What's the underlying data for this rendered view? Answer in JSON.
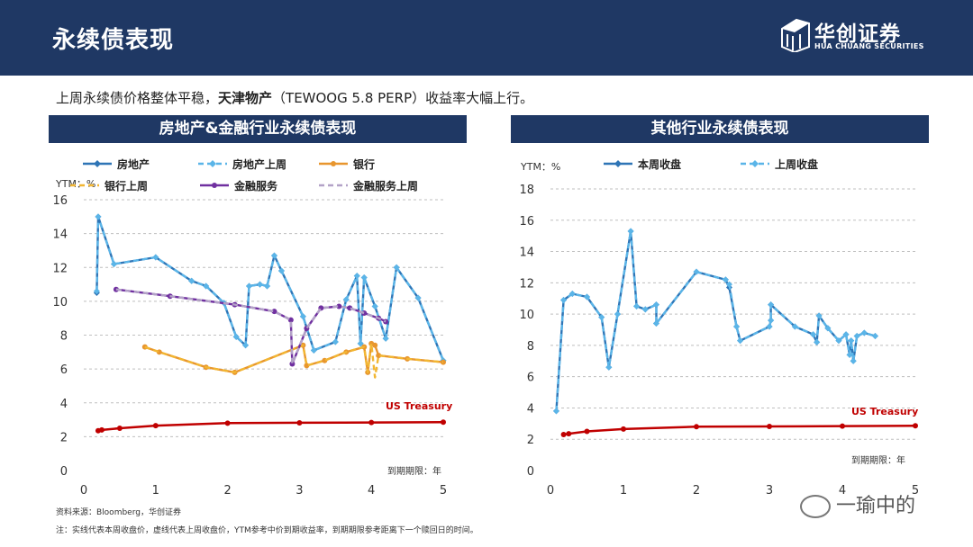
{
  "header": {
    "title": "永续债表现"
  },
  "logo": {
    "name": "华创证券",
    "sub": "HUA CHUANG SECURITIES"
  },
  "summary": {
    "part1": "上周永续债价格整体平稳，",
    "bold": "天津物产",
    "part2": "（TEWOOG 5.8 PERP）收益率大幅上行。"
  },
  "panels": {
    "left_title": "房地产&金融行业永续债表现",
    "right_title": "其他行业永续债表现"
  },
  "footer": {
    "source": "资料来源：Bloomberg，华创证券",
    "note": "注：实线代表本周收盘价，虚线代表上周收盘价，YTM参考中价到期收益率，到期期限参考距离下一个赎回日的时间。"
  },
  "watermark": "一瑜中的",
  "colors": {
    "navy": "#1f3864",
    "realestate": "#2e75b6",
    "realestate_prev": "#5bb5e8",
    "bank": "#e8962e",
    "bank_prev": "#f2b632",
    "finance": "#7030a0",
    "finance_prev": "#b3a2c7",
    "treasury": "#c00000"
  },
  "chart_data": [
    {
      "type": "line",
      "ylabel": "YTM：%",
      "xlabel": "到期期限：年",
      "xlim": [
        0,
        5
      ],
      "ylim": [
        0,
        16
      ],
      "xticks": [
        0,
        1,
        2,
        3,
        4,
        5
      ],
      "yticks": [
        0,
        2,
        4,
        6,
        8,
        10,
        12,
        14,
        16
      ],
      "legend_position": "top",
      "annotation": "US Treasury",
      "series": [
        {
          "name": "房地产",
          "style": "solid",
          "marker": "diamond",
          "color": "#2e75b6",
          "points": [
            [
              0.18,
              10.5
            ],
            [
              0.2,
              15.0
            ],
            [
              0.42,
              12.2
            ],
            [
              1.0,
              12.6
            ],
            [
              1.5,
              11.2
            ],
            [
              1.7,
              10.9
            ],
            [
              1.95,
              9.9
            ],
            [
              2.12,
              7.9
            ],
            [
              2.25,
              7.4
            ],
            [
              2.3,
              10.9
            ],
            [
              2.45,
              11.0
            ],
            [
              2.55,
              10.9
            ],
            [
              2.65,
              12.7
            ],
            [
              2.75,
              11.8
            ],
            [
              3.05,
              9.1
            ],
            [
              3.2,
              7.1
            ],
            [
              3.5,
              7.6
            ],
            [
              3.65,
              10.1
            ],
            [
              3.8,
              11.5
            ],
            [
              3.85,
              7.5
            ],
            [
              3.9,
              11.4
            ],
            [
              4.05,
              9.7
            ],
            [
              4.2,
              7.8
            ],
            [
              4.35,
              12.0
            ],
            [
              4.65,
              10.2
            ],
            [
              5.0,
              6.5
            ]
          ]
        },
        {
          "name": "房地产上周",
          "style": "dashed",
          "marker": "diamond",
          "color": "#5bb5e8",
          "points": [
            [
              0.18,
              10.6
            ],
            [
              0.2,
              15.0
            ],
            [
              0.42,
              12.2
            ],
            [
              1.0,
              12.6
            ],
            [
              1.5,
              11.2
            ],
            [
              1.7,
              10.9
            ],
            [
              1.95,
              9.9
            ],
            [
              2.12,
              7.9
            ],
            [
              2.25,
              7.4
            ],
            [
              2.3,
              10.9
            ],
            [
              2.45,
              11.0
            ],
            [
              2.55,
              10.9
            ],
            [
              2.65,
              12.7
            ],
            [
              2.75,
              11.8
            ],
            [
              3.05,
              9.1
            ],
            [
              3.2,
              7.1
            ],
            [
              3.5,
              7.6
            ],
            [
              3.65,
              10.1
            ],
            [
              3.8,
              11.5
            ],
            [
              3.85,
              7.5
            ],
            [
              3.9,
              11.4
            ],
            [
              4.05,
              9.7
            ],
            [
              4.2,
              7.8
            ],
            [
              4.35,
              12.0
            ],
            [
              4.65,
              10.2
            ],
            [
              5.0,
              6.5
            ]
          ]
        },
        {
          "name": "银行",
          "style": "solid",
          "marker": "circle",
          "color": "#e8962e",
          "points": [
            [
              0.85,
              7.3
            ],
            [
              1.05,
              7.0
            ],
            [
              1.7,
              6.1
            ],
            [
              2.1,
              5.8
            ],
            [
              3.05,
              7.4
            ],
            [
              3.1,
              6.2
            ],
            [
              3.35,
              6.5
            ],
            [
              3.65,
              7.0
            ],
            [
              3.9,
              7.3
            ],
            [
              3.95,
              5.8
            ],
            [
              4.0,
              7.5
            ],
            [
              4.05,
              7.4
            ],
            [
              4.1,
              6.8
            ],
            [
              4.5,
              6.6
            ],
            [
              5.0,
              6.4
            ]
          ]
        },
        {
          "name": "银行上周",
          "style": "dashed",
          "marker": "none",
          "color": "#f2b632",
          "points": [
            [
              0.85,
              7.3
            ],
            [
              1.05,
              7.0
            ],
            [
              1.7,
              6.1
            ],
            [
              2.1,
              5.8
            ],
            [
              3.05,
              7.4
            ],
            [
              3.1,
              6.2
            ],
            [
              3.35,
              6.5
            ],
            [
              3.65,
              7.0
            ],
            [
              3.9,
              7.3
            ],
            [
              3.95,
              5.8
            ],
            [
              4.0,
              7.5
            ],
            [
              4.05,
              5.5
            ],
            [
              4.1,
              6.8
            ],
            [
              4.5,
              6.6
            ],
            [
              5.0,
              6.4
            ]
          ]
        },
        {
          "name": "金融服务",
          "style": "solid",
          "marker": "circle",
          "color": "#7030a0",
          "points": [
            [
              0.45,
              10.7
            ],
            [
              1.2,
              10.3
            ],
            [
              2.1,
              9.8
            ],
            [
              2.65,
              9.4
            ],
            [
              2.88,
              8.9
            ],
            [
              2.9,
              6.3
            ],
            [
              3.1,
              8.4
            ],
            [
              3.3,
              9.6
            ],
            [
              3.55,
              9.7
            ],
            [
              3.7,
              9.6
            ],
            [
              3.9,
              9.3
            ],
            [
              4.1,
              9.0
            ],
            [
              4.2,
              8.8
            ]
          ]
        },
        {
          "name": "金融服务上周",
          "style": "dashed",
          "marker": "none",
          "color": "#b3a2c7",
          "points": [
            [
              0.45,
              10.7
            ],
            [
              1.2,
              10.3
            ],
            [
              2.1,
              9.8
            ],
            [
              2.65,
              9.4
            ],
            [
              2.88,
              8.9
            ],
            [
              2.9,
              6.3
            ],
            [
              3.1,
              8.4
            ],
            [
              3.3,
              9.6
            ],
            [
              3.55,
              9.7
            ],
            [
              3.7,
              9.6
            ],
            [
              3.9,
              9.3
            ],
            [
              4.1,
              9.0
            ],
            [
              4.2,
              8.8
            ]
          ]
        },
        {
          "name": "US Treasury",
          "style": "solid",
          "marker": "circle",
          "color": "#c00000",
          "in_legend": false,
          "points": [
            [
              0.2,
              2.35
            ],
            [
              0.25,
              2.4
            ],
            [
              0.5,
              2.5
            ],
            [
              1.0,
              2.65
            ],
            [
              2.0,
              2.8
            ],
            [
              3.0,
              2.82
            ],
            [
              4.0,
              2.84
            ],
            [
              5.0,
              2.86
            ]
          ]
        }
      ]
    },
    {
      "type": "line",
      "ylabel": "YTM：%",
      "xlabel": "到期期限：年",
      "xlim": [
        0,
        5
      ],
      "ylim": [
        0,
        18
      ],
      "xticks": [
        0,
        1,
        2,
        3,
        4,
        5
      ],
      "yticks": [
        0,
        2,
        4,
        6,
        8,
        10,
        12,
        14,
        16,
        18
      ],
      "legend_position": "top",
      "annotation": "US Treasury",
      "series": [
        {
          "name": "本周收盘",
          "style": "solid",
          "marker": "diamond",
          "color": "#2e75b6",
          "points": [
            [
              0.08,
              3.8
            ],
            [
              0.18,
              10.9
            ],
            [
              0.3,
              11.3
            ],
            [
              0.5,
              11.1
            ],
            [
              0.7,
              9.8
            ],
            [
              0.8,
              6.6
            ],
            [
              0.92,
              10.0
            ],
            [
              1.1,
              15.3
            ],
            [
              1.18,
              10.5
            ],
            [
              1.3,
              10.3
            ],
            [
              1.45,
              10.6
            ],
            [
              1.45,
              9.4
            ],
            [
              2.0,
              12.7
            ],
            [
              2.4,
              12.2
            ],
            [
              2.45,
              11.7
            ],
            [
              2.55,
              9.2
            ],
            [
              2.6,
              8.3
            ],
            [
              3.0,
              9.2
            ],
            [
              3.02,
              9.6
            ],
            [
              3.02,
              10.6
            ],
            [
              3.35,
              9.2
            ],
            [
              3.6,
              8.7
            ],
            [
              3.65,
              8.2
            ],
            [
              3.68,
              9.9
            ],
            [
              3.8,
              9.1
            ],
            [
              3.95,
              8.3
            ],
            [
              4.05,
              8.7
            ],
            [
              4.1,
              7.4
            ],
            [
              4.12,
              8.3
            ],
            [
              4.15,
              7.0
            ],
            [
              4.2,
              8.6
            ],
            [
              4.3,
              8.8
            ],
            [
              4.45,
              8.6
            ]
          ]
        },
        {
          "name": "上周收盘",
          "style": "dashed",
          "marker": "diamond",
          "color": "#5bb5e8",
          "points": [
            [
              0.08,
              3.8
            ],
            [
              0.18,
              10.9
            ],
            [
              0.3,
              11.3
            ],
            [
              0.5,
              11.1
            ],
            [
              0.7,
              9.8
            ],
            [
              0.8,
              6.6
            ],
            [
              0.92,
              10.0
            ],
            [
              1.1,
              15.3
            ],
            [
              1.18,
              10.5
            ],
            [
              1.3,
              10.3
            ],
            [
              1.45,
              10.6
            ],
            [
              1.45,
              9.4
            ],
            [
              2.0,
              12.7
            ],
            [
              2.4,
              12.2
            ],
            [
              2.45,
              11.9
            ],
            [
              2.55,
              9.2
            ],
            [
              2.6,
              8.3
            ],
            [
              3.0,
              9.2
            ],
            [
              3.02,
              9.6
            ],
            [
              3.02,
              10.6
            ],
            [
              3.35,
              9.2
            ],
            [
              3.6,
              8.7
            ],
            [
              3.65,
              8.2
            ],
            [
              3.68,
              9.9
            ],
            [
              3.8,
              9.1
            ],
            [
              3.95,
              8.3
            ],
            [
              4.05,
              8.7
            ],
            [
              4.1,
              7.4
            ],
            [
              4.12,
              8.3
            ],
            [
              4.15,
              7.0
            ],
            [
              4.2,
              8.6
            ],
            [
              4.3,
              8.8
            ],
            [
              4.45,
              8.6
            ]
          ]
        },
        {
          "name": "US Treasury",
          "style": "solid",
          "marker": "circle",
          "color": "#c00000",
          "in_legend": false,
          "points": [
            [
              0.18,
              2.3
            ],
            [
              0.25,
              2.35
            ],
            [
              0.5,
              2.5
            ],
            [
              1.0,
              2.65
            ],
            [
              2.0,
              2.8
            ],
            [
              3.0,
              2.82
            ],
            [
              4.0,
              2.84
            ],
            [
              5.0,
              2.86
            ]
          ]
        }
      ]
    }
  ]
}
